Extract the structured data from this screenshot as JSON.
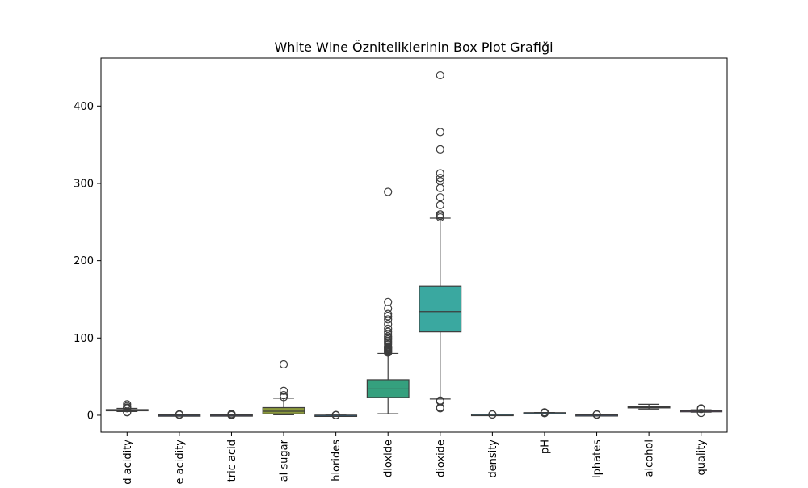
{
  "chart_data": {
    "type": "box",
    "title": "White Wine Özniteliklerinin Box Plot Grafiği",
    "xlabel": "",
    "ylabel": "",
    "ylim": [
      -22,
      462
    ],
    "yticks": [
      0,
      100,
      200,
      300,
      400
    ],
    "grid": false,
    "categories": [
      {
        "label": "fixed acidity",
        "visible_label": "d acidity",
        "color": "#3b4ba0",
        "q1": 6.3,
        "median": 6.8,
        "q3": 7.3,
        "whisker_low": 4.8,
        "whisker_high": 8.8,
        "outliers": [
          3.8,
          4.2,
          9.0,
          9.6,
          10.0,
          11.8,
          14.2
        ]
      },
      {
        "label": "volatile acidity",
        "visible_label": "e acidity",
        "color": "#3c5aa6",
        "q1": 0.21,
        "median": 0.26,
        "q3": 0.32,
        "whisker_low": 0.08,
        "whisker_high": 0.49,
        "outliers": [
          0.6,
          0.8,
          1.1
        ]
      },
      {
        "label": "citric acid",
        "visible_label": "tric acid",
        "color": "#5c58a0",
        "q1": 0.27,
        "median": 0.32,
        "q3": 0.39,
        "whisker_low": 0.09,
        "whisker_high": 0.57,
        "outliers": [
          0.0,
          0.8,
          1.2,
          1.66
        ]
      },
      {
        "label": "residual sugar",
        "visible_label": "al sugar",
        "color": "#8c9a3c",
        "q1": 1.7,
        "median": 5.2,
        "q3": 9.9,
        "whisker_low": 0.6,
        "whisker_high": 22.0,
        "outliers": [
          23.5,
          26.0,
          31.6,
          65.8
        ]
      },
      {
        "label": "chlorides",
        "visible_label": "hlorides",
        "color": "#2a7ab0",
        "q1": 0.036,
        "median": 0.043,
        "q3": 0.05,
        "whisker_low": 0.01,
        "whisker_high": 0.07,
        "outliers": [
          0.1,
          0.2,
          0.35
        ]
      },
      {
        "label": "free sulfur dioxide",
        "visible_label": "dioxide",
        "color": "#35a07e",
        "q1": 23,
        "median": 34,
        "q3": 46,
        "whisker_low": 2,
        "whisker_high": 80,
        "outliers": [
          81,
          82,
          83,
          84,
          85,
          86,
          87,
          88,
          89,
          92,
          94,
          96,
          98,
          100,
          102,
          105,
          108,
          112,
          118,
          124,
          128,
          131,
          138,
          146.5,
          289
        ]
      },
      {
        "label": "total sulfur dioxide",
        "visible_label": "dioxide",
        "color": "#3aa8a0",
        "q1": 108,
        "median": 134,
        "q3": 167,
        "whisker_low": 21,
        "whisker_high": 255,
        "outliers": [
          9,
          10,
          18,
          19,
          256,
          258,
          260,
          272,
          282,
          294,
          303,
          307,
          313,
          344,
          366.5,
          440
        ]
      },
      {
        "label": "density",
        "visible_label": "density",
        "color": "#3a98b0",
        "q1": 0.99,
        "median": 0.99,
        "q3": 1.0,
        "whisker_low": 0.99,
        "whisker_high": 1.0,
        "outliers": [
          1.0,
          1.04
        ]
      },
      {
        "label": "pH",
        "visible_label": "pH",
        "color": "#3a8ab0",
        "q1": 3.09,
        "median": 3.18,
        "q3": 3.28,
        "whisker_low": 2.8,
        "whisker_high": 3.57,
        "outliers": [
          2.72,
          3.6,
          3.7,
          3.82
        ]
      },
      {
        "label": "sulphates",
        "visible_label": "lphates",
        "color": "#4a70b0",
        "q1": 0.41,
        "median": 0.47,
        "q3": 0.55,
        "whisker_low": 0.22,
        "whisker_high": 0.76,
        "outliers": [
          0.8,
          0.9,
          1.08
        ]
      },
      {
        "label": "alcohol",
        "visible_label": "alcohol",
        "color": "#5a5ca8",
        "q1": 9.5,
        "median": 10.4,
        "q3": 11.4,
        "whisker_low": 8.0,
        "whisker_high": 14.2,
        "outliers": []
      },
      {
        "label": "quality",
        "visible_label": "quality",
        "color": "#8a4c9c",
        "q1": 5,
        "median": 6,
        "q3": 6,
        "whisker_low": 4,
        "whisker_high": 7,
        "outliers": [
          3,
          8,
          9
        ]
      }
    ]
  }
}
